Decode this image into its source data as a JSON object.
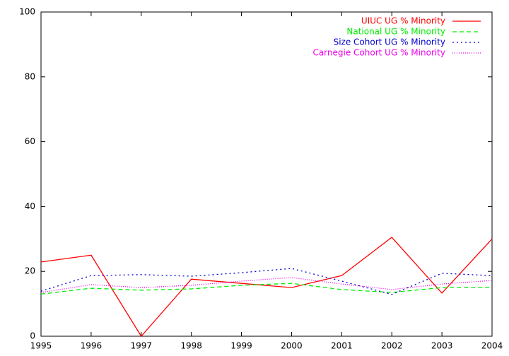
{
  "chart_data": {
    "type": "line",
    "x": [
      1995,
      1996,
      1997,
      1998,
      1999,
      2000,
      2001,
      2002,
      2003,
      2004
    ],
    "series": [
      {
        "name": "UIUC UG % Minority",
        "color": "#ff0000",
        "dash": "none",
        "values": [
          22.9,
          25,
          0,
          17.6,
          16.3,
          15,
          18.7,
          30.5,
          13.3,
          30
        ]
      },
      {
        "name": "National UG % Minority",
        "color": "#00ee00",
        "dash": "6,4",
        "values": [
          13,
          14.8,
          14.2,
          14.6,
          15.7,
          16.3,
          14.4,
          13.5,
          15,
          15
        ]
      },
      {
        "name": "Size Cohort UG % Minority",
        "color": "#0000cc",
        "dash": "2,4",
        "values": [
          13.9,
          18.7,
          19,
          18.5,
          19.6,
          20.9,
          17,
          12.9,
          19.4,
          18.7
        ]
      },
      {
        "name": "Carnegie Cohort UG % Minority",
        "color": "#ee00ee",
        "dash": "1,2",
        "values": [
          13.5,
          15.9,
          15,
          15.7,
          17,
          18.1,
          16.1,
          14.4,
          16.1,
          17.2
        ]
      }
    ],
    "xlim": [
      1995,
      2004
    ],
    "xticks": [
      1995,
      1996,
      1997,
      1998,
      1999,
      2000,
      2001,
      2002,
      2003,
      2004
    ],
    "ylim": [
      0,
      100
    ],
    "yticks": [
      0,
      20,
      40,
      60,
      80,
      100
    ],
    "grid": false,
    "legend": "top-right"
  }
}
